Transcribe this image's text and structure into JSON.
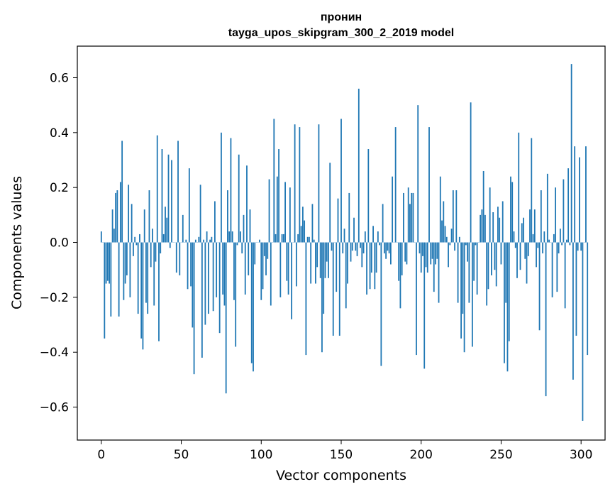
{
  "chart_data": {
    "type": "bar",
    "title": "пронин",
    "subtitle": "tayga_upos_skipgram_300_2_2019 model",
    "xlabel": "Vector components",
    "ylabel": "Components values",
    "xlim": [
      -15,
      315
    ],
    "ylim": [
      -0.72,
      0.715
    ],
    "xticks": [
      0,
      50,
      100,
      150,
      200,
      250,
      300
    ],
    "xtick_labels": [
      "0",
      "50",
      "100",
      "150",
      "200",
      "250",
      "300"
    ],
    "yticks": [
      -0.6,
      -0.4,
      -0.2,
      0.0,
      0.2,
      0.4,
      0.6
    ],
    "ytick_labels": [
      "−0.6",
      "−0.4",
      "−0.2",
      "0.0",
      "0.2",
      "0.4",
      "0.6"
    ],
    "grid": false,
    "bar_color": "#1f77b4",
    "x_start": 0,
    "values": [
      0.04,
      0.0,
      -0.35,
      -0.15,
      -0.14,
      -0.15,
      -0.27,
      0.12,
      0.05,
      0.18,
      0.19,
      -0.27,
      0.22,
      0.37,
      -0.21,
      -0.15,
      -0.12,
      0.21,
      -0.2,
      0.14,
      -0.05,
      0.02,
      -0.01,
      -0.26,
      0.03,
      -0.35,
      -0.39,
      0.12,
      -0.22,
      -0.26,
      0.19,
      -0.09,
      0.05,
      -0.23,
      -0.07,
      0.39,
      -0.36,
      -0.04,
      0.34,
      0.03,
      0.13,
      0.09,
      0.32,
      -0.02,
      0.3,
      0.0,
      0.0,
      -0.11,
      0.37,
      -0.12,
      0.0,
      0.1,
      0.0,
      0.01,
      -0.17,
      0.27,
      -0.16,
      -0.31,
      -0.48,
      0.01,
      0.0,
      0.02,
      0.21,
      -0.42,
      0.01,
      -0.3,
      0.04,
      -0.26,
      0.01,
      0.02,
      -0.25,
      0.15,
      -0.2,
      0.0,
      -0.33,
      0.4,
      -0.19,
      -0.23,
      -0.55,
      0.19,
      0.04,
      0.38,
      0.04,
      -0.21,
      -0.38,
      -0.01,
      0.32,
      0.04,
      -0.04,
      0.1,
      -0.19,
      0.28,
      -0.12,
      0.12,
      -0.44,
      -0.47,
      -0.08,
      0.0,
      0.0,
      0.01,
      -0.21,
      -0.17,
      -0.05,
      -0.12,
      -0.06,
      0.23,
      -0.23,
      0.0,
      0.45,
      0.03,
      0.24,
      0.34,
      -0.2,
      0.03,
      0.03,
      0.22,
      -0.14,
      -0.19,
      0.2,
      -0.28,
      0.0,
      0.43,
      -0.16,
      0.03,
      0.42,
      0.06,
      0.13,
      0.08,
      -0.41,
      0.02,
      0.02,
      -0.15,
      0.14,
      0.01,
      -0.15,
      -0.09,
      0.43,
      -0.13,
      -0.4,
      -0.26,
      -0.13,
      -0.07,
      -0.13,
      0.29,
      -0.03,
      -0.34,
      0.0,
      -0.18,
      0.16,
      -0.34,
      0.45,
      -0.04,
      0.05,
      -0.24,
      -0.15,
      0.18,
      -0.07,
      -0.03,
      0.09,
      -0.03,
      -0.05,
      0.56,
      -0.02,
      -0.09,
      -0.04,
      0.04,
      -0.19,
      0.34,
      -0.17,
      -0.11,
      0.06,
      -0.17,
      -0.11,
      0.04,
      -0.01,
      -0.45,
      0.14,
      -0.04,
      -0.06,
      -0.03,
      -0.04,
      -0.08,
      0.24,
      0.0,
      0.42,
      0.0,
      -0.14,
      -0.24,
      -0.12,
      0.18,
      -0.07,
      -0.08,
      0.2,
      0.14,
      0.18,
      0.18,
      0.0,
      -0.41,
      0.5,
      -0.04,
      -0.11,
      -0.05,
      -0.46,
      -0.09,
      -0.11,
      0.42,
      -0.08,
      -0.06,
      -0.18,
      -0.08,
      -0.06,
      -0.22,
      0.24,
      0.08,
      0.15,
      0.06,
      0.02,
      -0.09,
      -0.01,
      0.05,
      0.19,
      -0.03,
      0.19,
      -0.22,
      0.02,
      -0.35,
      -0.26,
      -0.4,
      -0.01,
      -0.07,
      -0.22,
      0.51,
      -0.38,
      -0.14,
      -0.01,
      -0.19,
      0.0,
      0.1,
      0.12,
      0.26,
      0.1,
      -0.23,
      -0.17,
      0.2,
      -0.12,
      0.11,
      -0.1,
      -0.16,
      0.13,
      0.09,
      -0.08,
      0.15,
      -0.44,
      -0.22,
      -0.47,
      -0.36,
      0.24,
      0.22,
      0.04,
      -0.02,
      -0.13,
      0.4,
      -0.1,
      0.07,
      0.09,
      -0.06,
      -0.15,
      -0.05,
      0.12,
      0.38,
      0.03,
      0.12,
      -0.09,
      -0.02,
      -0.32,
      0.19,
      -0.04,
      0.04,
      -0.56,
      0.25,
      0.01,
      0.0,
      -0.2,
      0.03,
      0.2,
      -0.18,
      -0.04,
      0.05,
      -0.01,
      0.23,
      -0.24,
      0.01,
      0.27,
      -0.01,
      0.65,
      -0.5,
      0.35,
      -0.34,
      -0.03,
      0.31,
      -0.03,
      -0.65,
      0.0,
      0.35,
      -0.41
    ]
  }
}
